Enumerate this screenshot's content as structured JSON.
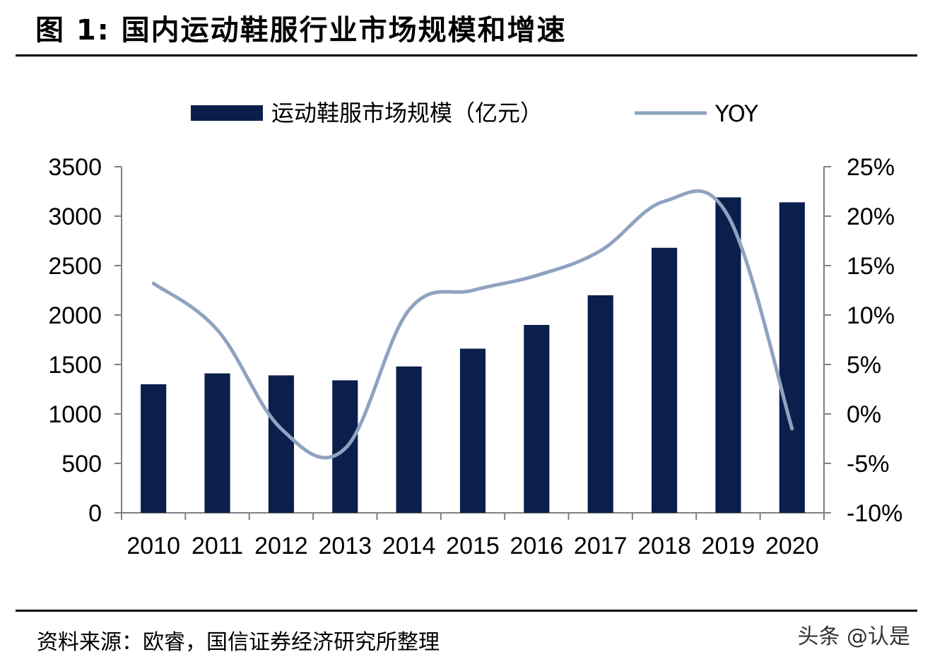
{
  "figure": {
    "title": "图 1:  国内运动鞋服行业市场规模和增速",
    "source": "资料来源：欧睿，国信证券经济研究所整理",
    "watermark": "头条 @认是"
  },
  "colors": {
    "bar": "#0b1f4d",
    "line": "#8fa3c0",
    "axis": "#808080"
  },
  "chart_data": {
    "type": "bar",
    "categories": [
      "2010",
      "2011",
      "2012",
      "2013",
      "2014",
      "2015",
      "2016",
      "2017",
      "2018",
      "2019",
      "2020"
    ],
    "series": [
      {
        "name": "运动鞋服市场规模（亿元）",
        "type": "bar",
        "axis": "left",
        "values": [
          1300,
          1410,
          1390,
          1340,
          1480,
          1660,
          1900,
          2200,
          2680,
          3190,
          3140
        ]
      },
      {
        "name": "YOY",
        "type": "line",
        "axis": "right",
        "values": [
          13.2,
          8.5,
          -1.5,
          -3.5,
          10.5,
          12.5,
          14.0,
          16.5,
          21.5,
          20.0,
          -1.5
        ]
      }
    ],
    "y_left": {
      "min": 0,
      "max": 3500,
      "ticks": [
        0,
        500,
        1000,
        1500,
        2000,
        2500,
        3000,
        3500
      ]
    },
    "y_right": {
      "min": -10,
      "max": 25,
      "ticks": [
        -10,
        -5,
        0,
        5,
        10,
        15,
        20,
        25
      ],
      "tick_labels": [
        "-10%",
        "-5%",
        "0%",
        "5%",
        "10%",
        "15%",
        "20%",
        "25%"
      ]
    },
    "legend": {
      "position": "top"
    },
    "grid": false
  }
}
